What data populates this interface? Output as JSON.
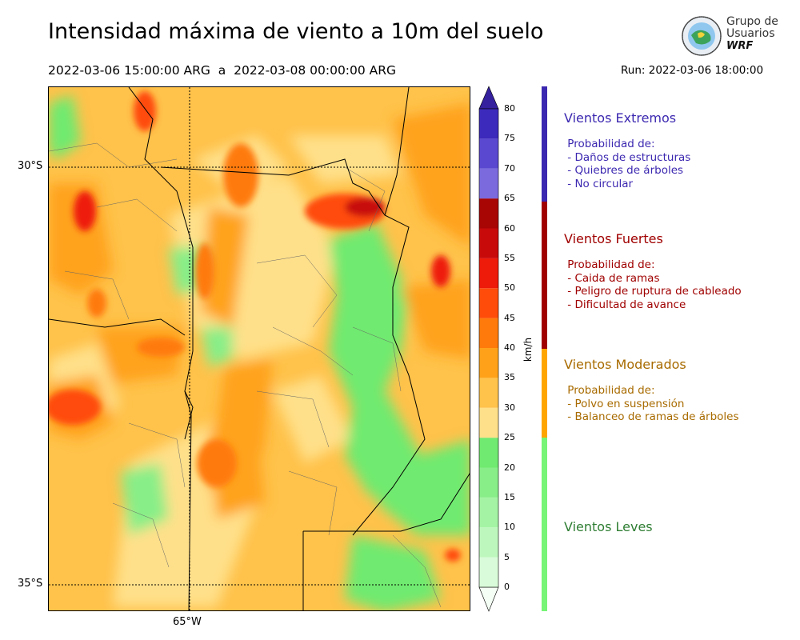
{
  "title": "Intensidad máxima de viento a 10m del suelo",
  "period": "2022-03-06 15:00:00 ARG  a  2022-03-08 00:00:00 ARG",
  "run": "Run: 2022-03-06 18:00:00",
  "logo": {
    "line1": "Grupo de",
    "line2": "Usuarios",
    "line3": "WRF"
  },
  "map": {
    "lat_labels": [
      "30°S",
      "35°S"
    ],
    "lon_labels": [
      "65°W"
    ]
  },
  "colorbar": {
    "unit": "km/h",
    "ticks": [
      "0",
      "5",
      "10",
      "15",
      "20",
      "25",
      "30",
      "35",
      "40",
      "45",
      "50",
      "55",
      "60",
      "65",
      "70",
      "75",
      "80"
    ],
    "colors": [
      "#f5fff5",
      "#d9fbd9",
      "#bef7be",
      "#a4f3a4",
      "#88ee88",
      "#70ea70",
      "#ffe08a",
      "#ffc24a",
      "#ffa21a",
      "#ff7a0a",
      "#ff4c0a",
      "#ee1a0a",
      "#c80a0a",
      "#a80505",
      "#7a6ade",
      "#5a48d0",
      "#3c2abc"
    ],
    "extend_low_color": "#f5fff5",
    "extend_high_color": "#35209e"
  },
  "categories": [
    {
      "title": "Vientos Extremos",
      "color": "#3b28b0",
      "bar_color": "#3b28b0",
      "text": " Probabilidad de:\n - Daños de estructuras\n - Quiebres de árboles\n - No circular"
    },
    {
      "title": "Vientos Fuertes",
      "color": "#a00000",
      "bar_color": "#a00000",
      "text": " Probabilidad de:\n - Caida de ramas\n - Peligro de ruptura de cableado\n - Dificultad de avance"
    },
    {
      "title": "Vientos Moderados",
      "color": "#a86b00",
      "bar_color": "#ffa500",
      "text": " Probabilidad de:\n - Polvo en suspensión\n - Balanceo de ramas de árboles"
    },
    {
      "title": "Vientos Leves",
      "color": "#2e7d32",
      "bar_color": "#77f577",
      "text": ""
    }
  ]
}
